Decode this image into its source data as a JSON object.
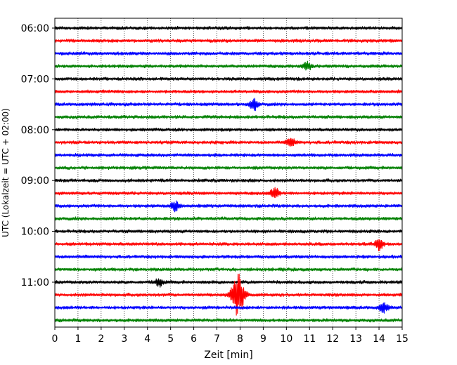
{
  "chart_data": {
    "type": "line",
    "title": "",
    "xlabel": "Zeit  [min]",
    "ylabel": "UTC (Lokalzeit = UTC + 02:00)",
    "xlim": [
      0,
      15
    ],
    "x_ticks": [
      "0",
      "1",
      "2",
      "3",
      "4",
      "5",
      "6",
      "7",
      "8",
      "9",
      "10",
      "11",
      "12",
      "13",
      "14",
      "15"
    ],
    "y_tick_labels": [
      "06:00",
      "07:00",
      "08:00",
      "09:00",
      "10:00",
      "11:00"
    ],
    "y_tick_rows": [
      0,
      4,
      8,
      12,
      16,
      20
    ],
    "grid": "vertical dotted",
    "legend": "none",
    "trace_colors": [
      "#000000",
      "#ff0000",
      "#0000ff",
      "#008000"
    ],
    "rows": 24,
    "row_interval_minutes": 15,
    "start_time": "06:00",
    "events": [
      {
        "row": 3,
        "minute": 10.9,
        "amplitude": 0.4
      },
      {
        "row": 6,
        "minute": 8.6,
        "amplitude": 0.5
      },
      {
        "row": 9,
        "minute": 10.2,
        "amplitude": 0.4
      },
      {
        "row": 13,
        "minute": 9.5,
        "amplitude": 0.5
      },
      {
        "row": 14,
        "minute": 5.2,
        "amplitude": 0.45
      },
      {
        "row": 17,
        "minute": 14.0,
        "amplitude": 0.5
      },
      {
        "row": 20,
        "minute": 4.5,
        "amplitude": 0.35
      },
      {
        "row": 21,
        "minute": 7.9,
        "amplitude": 2.0
      },
      {
        "row": 22,
        "minute": 14.2,
        "amplitude": 0.45
      }
    ]
  }
}
